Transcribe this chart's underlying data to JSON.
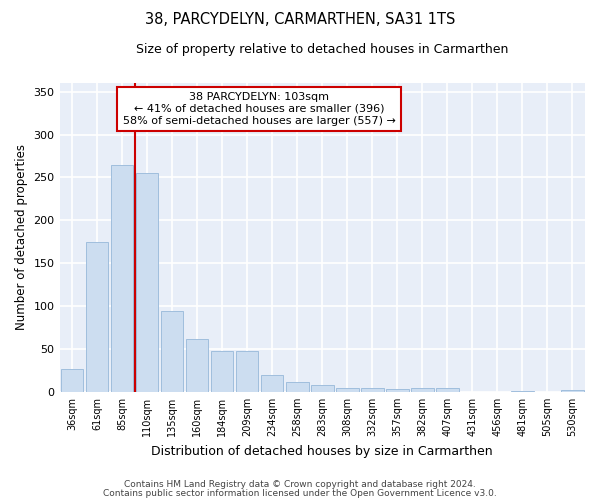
{
  "title": "38, PARCYDELYN, CARMARTHEN, SA31 1TS",
  "subtitle": "Size of property relative to detached houses in Carmarthen",
  "xlabel": "Distribution of detached houses by size in Carmarthen",
  "ylabel": "Number of detached properties",
  "bar_labels": [
    "36sqm",
    "61sqm",
    "85sqm",
    "110sqm",
    "135sqm",
    "160sqm",
    "184sqm",
    "209sqm",
    "234sqm",
    "258sqm",
    "283sqm",
    "308sqm",
    "332sqm",
    "357sqm",
    "382sqm",
    "407sqm",
    "431sqm",
    "456sqm",
    "481sqm",
    "505sqm",
    "530sqm"
  ],
  "bar_values": [
    27,
    175,
    264,
    255,
    94,
    62,
    48,
    48,
    20,
    11,
    8,
    5,
    4,
    3,
    5,
    5,
    0,
    0,
    1,
    0,
    2
  ],
  "bar_color": "#ccddf0",
  "bar_edge_color": "#a0bedd",
  "property_label": "38 PARCYDELYN: 103sqm",
  "annotation_line1": "← 41% of detached houses are smaller (396)",
  "annotation_line2": "58% of semi-detached houses are larger (557) →",
  "vline_position": 3.0,
  "ylim": [
    0,
    360
  ],
  "yticks": [
    0,
    50,
    100,
    150,
    200,
    250,
    300,
    350
  ],
  "plot_bg_color": "#e8eef8",
  "grid_color": "#ffffff",
  "annotation_box_facecolor": "#ffffff",
  "annotation_box_edgecolor": "#cc0000",
  "vline_color": "#cc0000",
  "footer_line1": "Contains HM Land Registry data © Crown copyright and database right 2024.",
  "footer_line2": "Contains public sector information licensed under the Open Government Licence v3.0."
}
